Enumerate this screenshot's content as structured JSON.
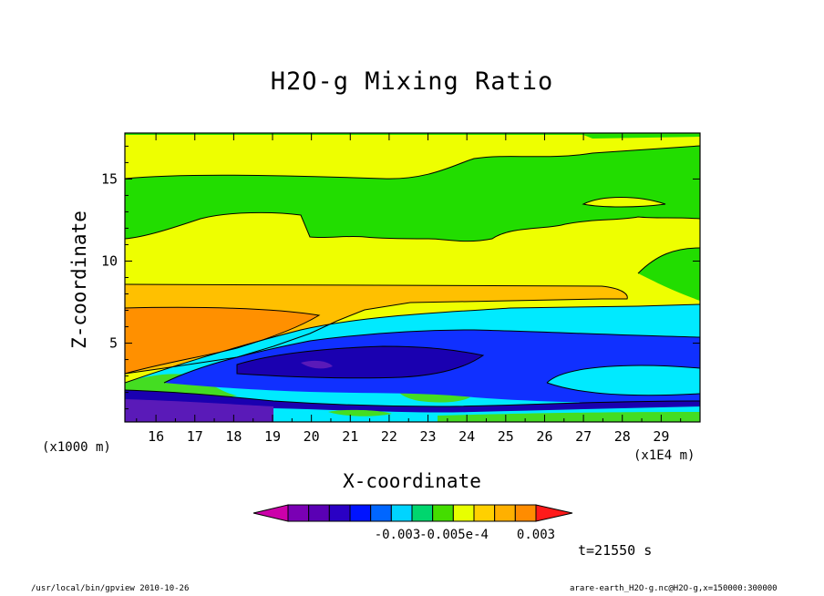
{
  "chart_data": {
    "type": "contour",
    "title": "H2O-g Mixing Ratio",
    "xlabel": "X-coordinate",
    "ylabel": "Z-coordinate",
    "x_unit_left": "(x1000 m)",
    "x_unit_right": "(x1E4 m)",
    "xlim": [
      15.2,
      30.0
    ],
    "ylim": [
      0.2,
      17.8
    ],
    "x_ticks": [
      16,
      17,
      18,
      19,
      20,
      21,
      22,
      23,
      24,
      25,
      26,
      27,
      28,
      29
    ],
    "y_ticks": [
      5,
      10,
      15
    ],
    "colorbar": {
      "colors": [
        "#cc00aa",
        "#7a00b4",
        "#5a00b4",
        "#2a00c4",
        "#0014ff",
        "#0066ff",
        "#00d4ff",
        "#00d66e",
        "#44dd00",
        "#e8ff00",
        "#ffd000",
        "#ffb000",
        "#ff8c00",
        "#ff1a1a"
      ],
      "tick_labels": [
        "-0.003",
        "-0.005e-4",
        "0.003"
      ]
    },
    "time_label": "t=21550 s"
  },
  "footer": {
    "left": "/usr/local/bin/gpview  2010-10-26",
    "right": "arare-earth_H2O-g.nc@H2O-g,x=150000:300000"
  },
  "colors": {
    "top_band": "#22dd00",
    "upper_yellow": "#eeff00",
    "mid_orange": "#ffc000",
    "low_orange": "#ff9000",
    "cyan": "#00eaff",
    "blue": "#1030ff",
    "navy": "#1a00b0",
    "purple": "#5a1ab8",
    "green": "#44dd22"
  }
}
